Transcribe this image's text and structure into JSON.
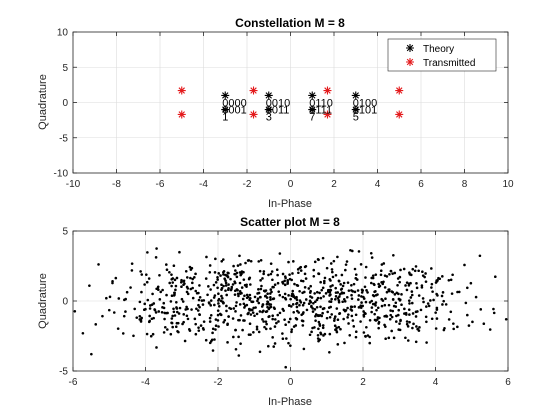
{
  "chart_data": [
    {
      "type": "scatter",
      "title": "Constellation M = 8",
      "xlabel": "In-Phase",
      "ylabel": "Quadrature",
      "xlim": [
        -10,
        10
      ],
      "ylim": [
        -10,
        10
      ],
      "xticks": [
        -10,
        -8,
        -6,
        -4,
        -2,
        0,
        2,
        4,
        6,
        8,
        10
      ],
      "yticks": [
        -10,
        -5,
        0,
        5,
        10
      ],
      "grid": true,
      "legend": "top-right",
      "series": [
        {
          "name": "Theory",
          "color": "#000000",
          "marker": "asterisk",
          "points": [
            [
              -3,
              1
            ],
            [
              -1,
              1
            ],
            [
              1,
              1
            ],
            [
              3,
              1
            ],
            [
              -3,
              -1
            ],
            [
              -1,
              -1
            ],
            [
              1,
              -1
            ],
            [
              3,
              -1
            ]
          ]
        },
        {
          "name": "Transmitted",
          "color": "#e41a1c",
          "marker": "asterisk",
          "points": [
            [
              -5,
              1.7
            ],
            [
              -1.7,
              1.7
            ],
            [
              1.7,
              1.7
            ],
            [
              5,
              1.7
            ],
            [
              -5,
              -1.7
            ],
            [
              -1.7,
              -1.7
            ],
            [
              1.7,
              -1.7
            ],
            [
              5,
              -1.7
            ]
          ]
        }
      ],
      "annotations": [
        {
          "text": "0000",
          "x": -3,
          "y": 0
        },
        {
          "text": "0010",
          "x": -1,
          "y": 0
        },
        {
          "text": "0110",
          "x": 1,
          "y": 0
        },
        {
          "text": "0100",
          "x": 3,
          "y": 0
        },
        {
          "text": "0001",
          "x": -3,
          "y": -1
        },
        {
          "text": "0011",
          "x": -1,
          "y": -1
        },
        {
          "text": "0111",
          "x": 1,
          "y": -1
        },
        {
          "text": "0101",
          "x": 3,
          "y": -1
        },
        {
          "text": "1",
          "x": -3,
          "y": -2
        },
        {
          "text": "3",
          "x": -1,
          "y": -2
        },
        {
          "text": "7",
          "x": 1,
          "y": -2
        },
        {
          "text": "5",
          "x": 3,
          "y": -2
        }
      ]
    },
    {
      "type": "scatter",
      "title": "Scatter plot M = 8",
      "xlabel": "In-Phase",
      "ylabel": "Quadrature",
      "xlim": [
        -6,
        6
      ],
      "ylim": [
        -5,
        5
      ],
      "xticks": [
        -6,
        -4,
        -2,
        0,
        2,
        4,
        6
      ],
      "yticks": [
        -5,
        0,
        5
      ],
      "grid": true,
      "color": "#000000",
      "cloud": {
        "centers": [
          [
            -3,
            1
          ],
          [
            -1,
            1
          ],
          [
            1,
            1
          ],
          [
            3,
            1
          ],
          [
            -3,
            -1
          ],
          [
            -1,
            -1
          ],
          [
            1,
            -1
          ],
          [
            3,
            -1
          ]
        ],
        "spread": 1.1,
        "count": 1000
      }
    }
  ]
}
